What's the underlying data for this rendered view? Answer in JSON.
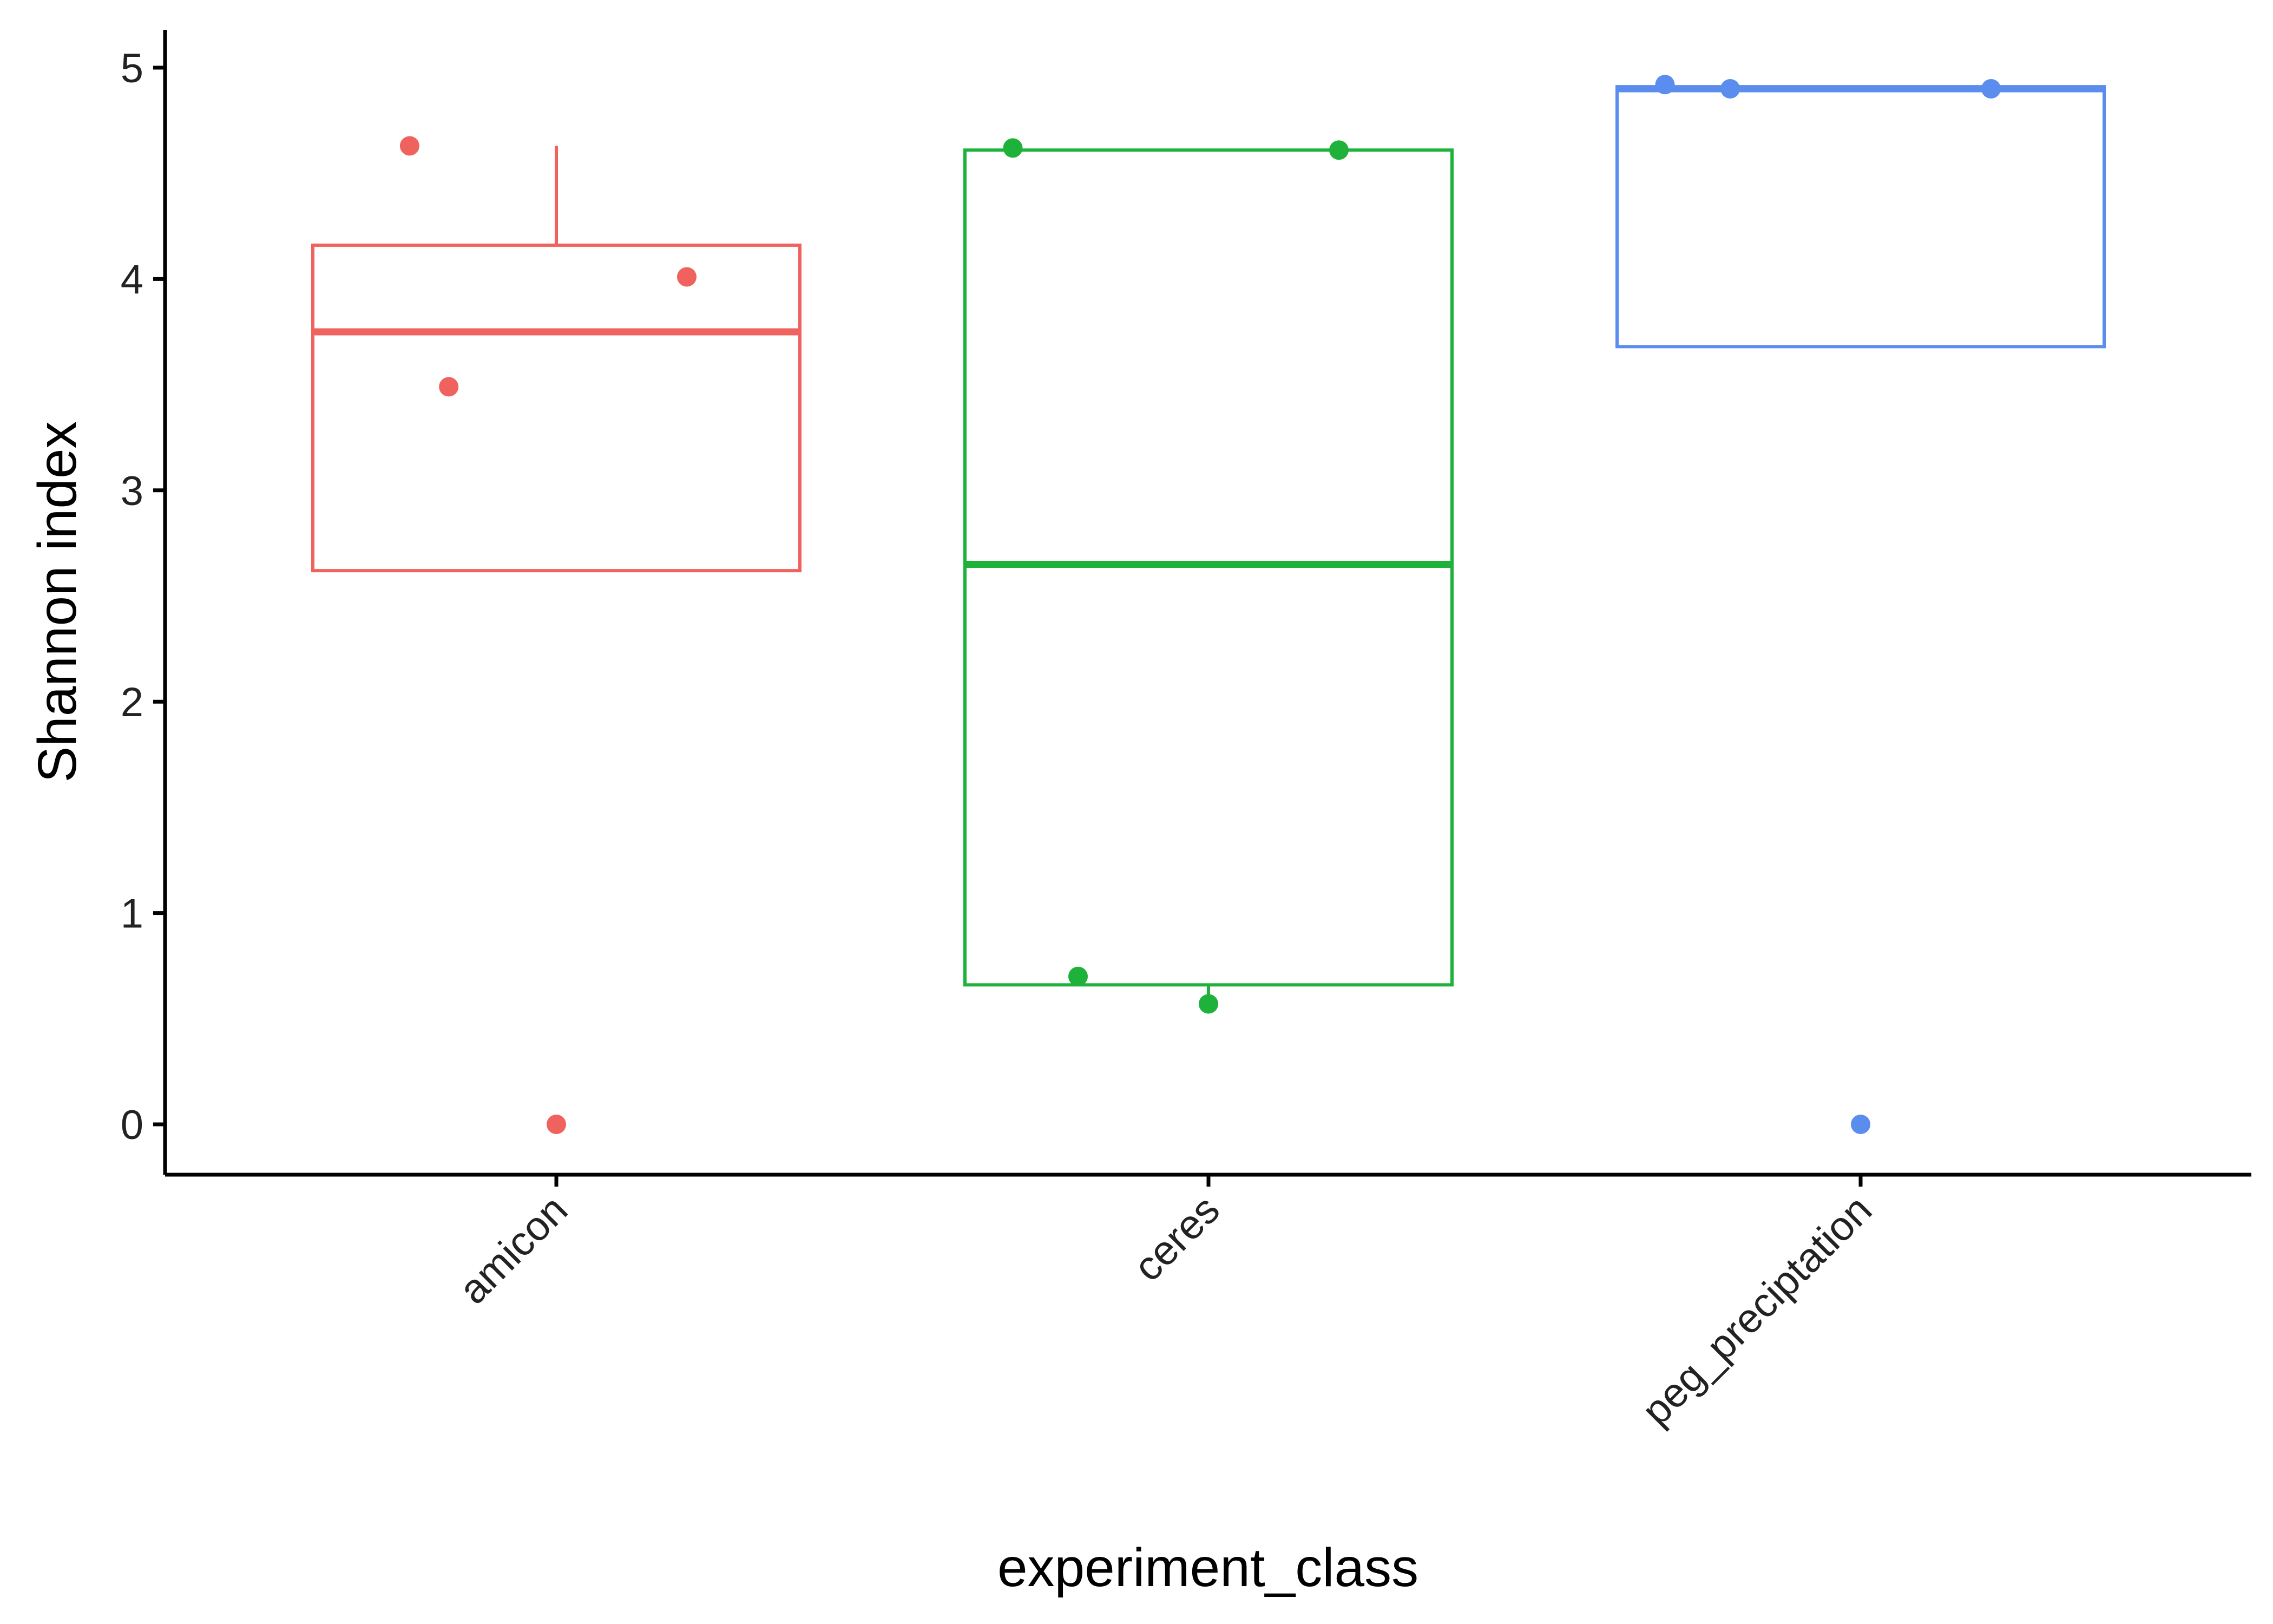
{
  "chart_data": {
    "type": "boxplot",
    "title": "",
    "xlabel": "experiment_class",
    "ylabel": "Shannon index",
    "categories": [
      "amicon",
      "ceres",
      "peg_preciptation"
    ],
    "ylim": [
      -0.25,
      5.15
    ],
    "yticks": [
      0,
      1,
      2,
      3,
      4,
      5
    ],
    "grid": false,
    "legend": "none",
    "series": [
      {
        "category": "amicon",
        "color": "#F0625E",
        "box": {
          "q1": 2.62,
          "median": 3.75,
          "q3": 4.16,
          "whisker_low": 2.62,
          "whisker_high": 4.63
        },
        "points": [
          {
            "x_jitter": -0.225,
            "y": 4.63
          },
          {
            "x_jitter": 0.2,
            "y": 4.01
          },
          {
            "x_jitter": -0.165,
            "y": 3.49
          },
          {
            "x_jitter": 0.0,
            "y": 0.0
          }
        ]
      },
      {
        "category": "ceres",
        "color": "#1EB23B",
        "box": {
          "q1": 0.66,
          "median": 2.65,
          "q3": 4.61,
          "whisker_low": 0.57,
          "whisker_high": 4.61
        },
        "points": [
          {
            "x_jitter": -0.3,
            "y": 4.62
          },
          {
            "x_jitter": 0.2,
            "y": 4.61
          },
          {
            "x_jitter": -0.2,
            "y": 0.7
          },
          {
            "x_jitter": 0.0,
            "y": 0.57
          }
        ]
      },
      {
        "category": "peg_preciptation",
        "color": "#5B8DEF",
        "box": {
          "q1": 3.68,
          "median": 4.9,
          "q3": 4.91,
          "whisker_low": 3.68,
          "whisker_high": 4.91
        },
        "points": [
          {
            "x_jitter": -0.3,
            "y": 4.92
          },
          {
            "x_jitter": -0.2,
            "y": 4.9
          },
          {
            "x_jitter": 0.2,
            "y": 4.9
          },
          {
            "x_jitter": 0.0,
            "y": 0.0
          }
        ]
      }
    ]
  }
}
